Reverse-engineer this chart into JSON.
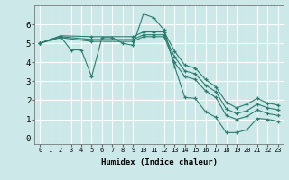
{
  "xlabel": "Humidex (Indice chaleur)",
  "bg_color": "#cce8e8",
  "grid_color": "#ffffff",
  "line_color": "#2a7d6f",
  "marker": "+",
  "xlim": [
    -0.5,
    23.5
  ],
  "ylim": [
    -0.3,
    7.0
  ],
  "lines": [
    {
      "x": [
        0,
        1,
        2,
        3,
        4,
        5,
        6,
        7,
        8,
        9,
        10,
        11,
        12,
        13,
        14,
        15,
        16,
        17,
        18,
        19,
        20,
        21,
        22,
        23
      ],
      "y": [
        5.0,
        5.2,
        5.35,
        4.65,
        4.65,
        3.25,
        5.3,
        5.3,
        5.0,
        4.9,
        6.55,
        6.35,
        5.7,
        3.8,
        2.15,
        2.1,
        1.4,
        1.1,
        0.3,
        0.3,
        0.45,
        1.05,
        1.0,
        0.9
      ]
    },
    {
      "x": [
        0,
        2,
        5,
        9,
        10,
        11,
        12,
        13,
        14,
        15,
        16,
        17,
        18,
        19,
        20,
        21,
        22,
        23
      ],
      "y": [
        5.0,
        5.4,
        5.35,
        5.35,
        5.6,
        5.6,
        5.6,
        4.6,
        3.85,
        3.7,
        3.1,
        2.7,
        1.9,
        1.6,
        1.8,
        2.1,
        1.85,
        1.75
      ]
    },
    {
      "x": [
        0,
        2,
        5,
        9,
        10,
        11,
        12,
        13,
        14,
        15,
        16,
        17,
        18,
        19,
        20,
        21,
        22,
        23
      ],
      "y": [
        5.0,
        5.35,
        5.2,
        5.2,
        5.45,
        5.45,
        5.45,
        4.3,
        3.55,
        3.4,
        2.8,
        2.45,
        1.55,
        1.3,
        1.45,
        1.8,
        1.6,
        1.5
      ]
    },
    {
      "x": [
        0,
        2,
        5,
        9,
        10,
        11,
        12,
        13,
        14,
        15,
        16,
        17,
        18,
        19,
        20,
        21,
        22,
        23
      ],
      "y": [
        5.0,
        5.3,
        5.1,
        5.1,
        5.35,
        5.35,
        5.35,
        4.0,
        3.25,
        3.1,
        2.5,
        2.15,
        1.2,
        1.0,
        1.15,
        1.5,
        1.3,
        1.2
      ]
    }
  ]
}
